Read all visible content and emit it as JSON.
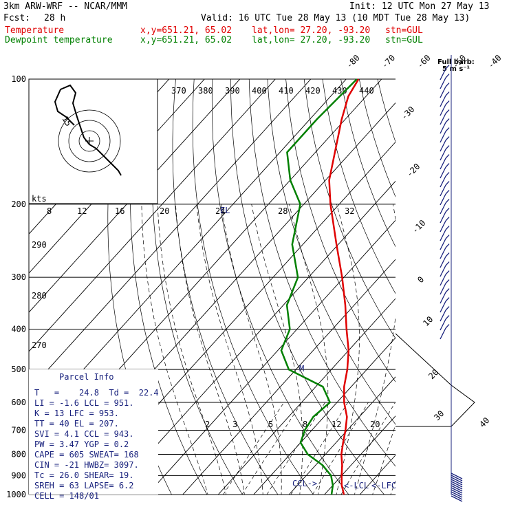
{
  "header": {
    "model": "3km ARW-WRF -- NCAR/MMM",
    "init": "Init: 12 UTC Mon 27 May 13",
    "fcst_label": "Fcst:",
    "fcst_value": "28 h",
    "valid": "Valid: 16 UTC Tue 28 May 13 (10 MDT Tue 28 May 13)",
    "temp_label": "Temperature",
    "dew_label": "Dewpoint temperature",
    "xy": "x,y=651.21, 65.02",
    "latlon": "lat,lon= 27.20, -93.20",
    "stn": "stn=GUL",
    "barb_title": "Full barb:",
    "barb_units": "5 m s⁻¹"
  },
  "colors": {
    "temperature": "#e00000",
    "dewpoint": "#008000",
    "text_blue": "#1a237e"
  },
  "parcel_info": {
    "title": "Parcel Info",
    "rows": [
      "T   =    24.8  Td =  22.4",
      "LI  =    -1.6  LCL =  951.",
      "K   =     13  LFC =  953.",
      "TT  =     40  EL  =  207.",
      "SVI =    4.1  CCL =  943.",
      "PW  =   3.47  YGP =   0.2",
      "CAPE =   605  SWEAT=   168",
      "CIN  =   -21  HWBZ= 3097.",
      "Tc  =   26.0  SHEAR=   19.",
      "SREH =    63  LAPSE=   6.2",
      "CELL = 148/01"
    ]
  },
  "markers": {
    "ccl": "CCL->",
    "lcl": "<-LCL",
    "lfc": "<-LFC",
    "el": "EL",
    "m": "M"
  },
  "hodograph": {
    "units_label": "kts",
    "ring_label": "15"
  },
  "chart_data": {
    "type": "skew-t",
    "pressure_levels": [
      100,
      200,
      300,
      400,
      500,
      600,
      700,
      800,
      900,
      1000
    ],
    "pressure_labels": [
      "100",
      "200",
      "300",
      "400",
      "500",
      "600",
      "700",
      "800",
      "900",
      "1000"
    ],
    "isotherm_labels_top": [
      "-80",
      "-70",
      "-60",
      "-50",
      "-40"
    ],
    "isotherm_labels_right": [
      "-30",
      "-20",
      "-10",
      "0",
      "10",
      "20",
      "30",
      "40"
    ],
    "theta_labels": [
      "370",
      "380",
      "390",
      "400",
      "410",
      "420",
      "430",
      "440"
    ],
    "mixing_ratio_labels": [
      "2",
      "3",
      "5",
      "8",
      "12",
      "20"
    ],
    "hodograph_speed_labels": [
      "8",
      "12",
      "16",
      "20",
      "24",
      "28",
      "32"
    ],
    "hodograph_dir_labels": [
      "290",
      "280",
      "270"
    ],
    "temperature_profile": [
      {
        "p": 1000,
        "t": 25.5
      },
      {
        "p": 950,
        "t": 22.5
      },
      {
        "p": 900,
        "t": 20.0
      },
      {
        "p": 850,
        "t": 17.5
      },
      {
        "p": 800,
        "t": 14.5
      },
      {
        "p": 750,
        "t": 12.0
      },
      {
        "p": 700,
        "t": 9.5
      },
      {
        "p": 650,
        "t": 6.5
      },
      {
        "p": 600,
        "t": 2.0
      },
      {
        "p": 550,
        "t": -2.0
      },
      {
        "p": 500,
        "t": -5.5
      },
      {
        "p": 450,
        "t": -10.0
      },
      {
        "p": 400,
        "t": -16.0
      },
      {
        "p": 350,
        "t": -22.5
      },
      {
        "p": 300,
        "t": -30.5
      },
      {
        "p": 250,
        "t": -40.5
      },
      {
        "p": 200,
        "t": -52.5
      },
      {
        "p": 175,
        "t": -59.0
      },
      {
        "p": 150,
        "t": -64.5
      },
      {
        "p": 125,
        "t": -71.0
      },
      {
        "p": 110,
        "t": -75.0
      },
      {
        "p": 100,
        "t": -76.5
      }
    ],
    "dewpoint_profile": [
      {
        "p": 1000,
        "t": 22.0
      },
      {
        "p": 950,
        "t": 20.0
      },
      {
        "p": 900,
        "t": 17.0
      },
      {
        "p": 850,
        "t": 12.0
      },
      {
        "p": 800,
        "t": 5.0
      },
      {
        "p": 750,
        "t": 0.0
      },
      {
        "p": 700,
        "t": -2.0
      },
      {
        "p": 650,
        "t": -3.0
      },
      {
        "p": 600,
        "t": -2.0
      },
      {
        "p": 550,
        "t": -8.0
      },
      {
        "p": 500,
        "t": -22.0
      },
      {
        "p": 450,
        "t": -29.0
      },
      {
        "p": 400,
        "t": -32.0
      },
      {
        "p": 350,
        "t": -39.0
      },
      {
        "p": 300,
        "t": -43.0
      },
      {
        "p": 250,
        "t": -53.0
      },
      {
        "p": 200,
        "t": -61.0
      },
      {
        "p": 175,
        "t": -70.0
      },
      {
        "p": 150,
        "t": -78.0
      },
      {
        "p": 125,
        "t": -78.0
      },
      {
        "p": 100,
        "t": -77.0
      }
    ]
  }
}
